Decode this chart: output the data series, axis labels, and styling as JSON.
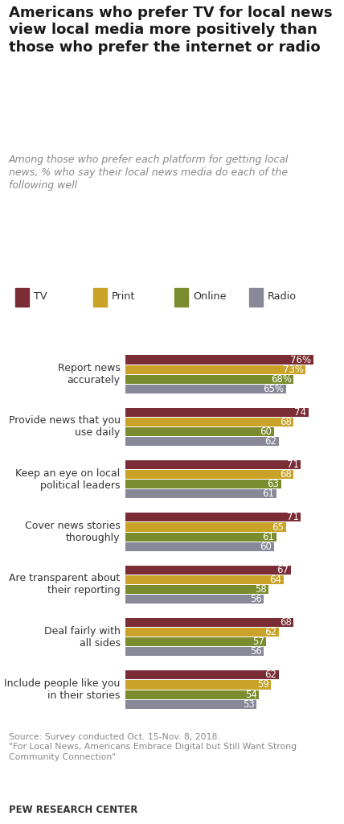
{
  "title": "Americans who prefer TV for local news\nview local media more positively than\nthose who prefer the internet or radio",
  "subtitle": "Among those who prefer each platform for getting local\nnews, % who say their local news media do each of the\nfollowing well",
  "categories": [
    "Report news\naccurately",
    "Provide news that you\nuse daily",
    "Keep an eye on local\npolitical leaders",
    "Cover news stories\nthoroughly",
    "Are transparent about\ntheir reporting",
    "Deal fairly with\nall sides",
    "Include people like you\nin their stories"
  ],
  "series": {
    "TV": [
      76,
      74,
      71,
      71,
      67,
      68,
      62
    ],
    "Print": [
      73,
      68,
      68,
      65,
      64,
      62,
      59
    ],
    "Online": [
      68,
      60,
      63,
      61,
      58,
      57,
      54
    ],
    "Radio": [
      65,
      62,
      61,
      60,
      56,
      56,
      53
    ]
  },
  "colors": {
    "TV": "#7b2d35",
    "Print": "#c9a227",
    "Online": "#7a8c2e",
    "Radio": "#888899"
  },
  "use_percent": [
    true,
    false,
    false,
    false,
    false,
    false,
    false
  ],
  "source_text": "Source: Survey conducted Oct. 15-Nov. 8, 2018.\n\"For Local News, Americans Embrace Digital but Still Want Strong\nCommunity Connection\"",
  "footer": "PEW RESEARCH CENTER",
  "background_color": "#ffffff",
  "legend_order": [
    "TV",
    "Print",
    "Online",
    "Radio"
  ],
  "xlim": 85
}
